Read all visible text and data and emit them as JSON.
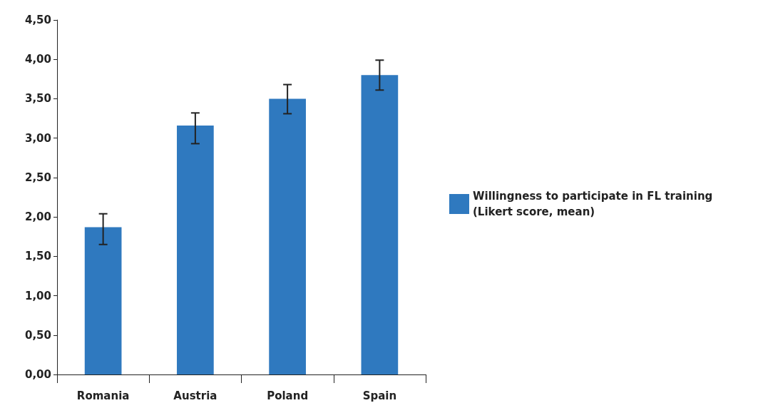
{
  "chart_data": {
    "type": "bar",
    "categories": [
      "Romania",
      "Austria",
      "Poland",
      "Spain"
    ],
    "series": [
      {
        "name": "Willingness to participate in FL training (Likert score, mean)",
        "color": "#2f79bf",
        "values": [
          1.87,
          3.16,
          3.5,
          3.8
        ],
        "errors": [
          [
            1.65,
            2.04
          ],
          [
            2.93,
            3.32
          ],
          [
            3.31,
            3.68
          ],
          [
            3.61,
            3.99
          ]
        ]
      }
    ],
    "ylim": [
      0,
      4.5
    ],
    "yticks": [
      {
        "value": 0,
        "label": "0,00"
      },
      {
        "value": 0.5,
        "label": "0,50"
      },
      {
        "value": 1,
        "label": "1,00"
      },
      {
        "value": 1.5,
        "label": "1,50"
      },
      {
        "value": 2,
        "label": "2,00"
      },
      {
        "value": 2.5,
        "label": "2,50"
      },
      {
        "value": 3,
        "label": "3,00"
      },
      {
        "value": 3.5,
        "label": "3,50"
      },
      {
        "value": 4,
        "label": "4,00"
      },
      {
        "value": 4.5,
        "label": "4,50"
      }
    ],
    "legend": "right",
    "grid": false
  }
}
